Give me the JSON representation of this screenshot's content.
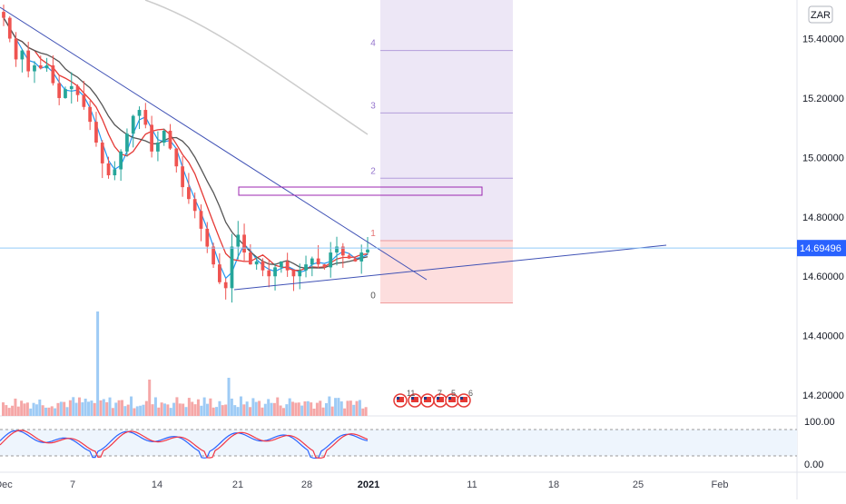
{
  "chart_data": {
    "type": "candlestick",
    "symbol_currency": "ZAR",
    "last_price": "14.69496",
    "y_ticks": [
      "15.40000",
      "15.20000",
      "15.00000",
      "14.80000",
      "14.60000",
      "14.40000",
      "14.20000"
    ],
    "y_tick_values": [
      15.4,
      15.2,
      15.0,
      14.8,
      14.6,
      14.4,
      14.2
    ],
    "x_ticks": [
      "Dec",
      "7",
      "14",
      "21",
      "28",
      "2021",
      "11",
      "18",
      "25",
      "Feb"
    ],
    "ylim": [
      14.13,
      15.53
    ],
    "price_path": [
      15.47,
      15.4,
      15.33,
      15.36,
      15.29,
      15.31,
      15.3,
      15.31,
      15.25,
      15.2,
      15.23,
      15.24,
      15.21,
      15.17,
      15.12,
      15.05,
      14.98,
      14.94,
      14.96,
      15.02,
      15.08,
      15.14,
      15.16,
      15.11,
      15.02,
      15.05,
      15.09,
      15.03,
      14.97,
      14.9,
      14.86,
      14.82,
      14.76,
      14.7,
      14.64,
      14.58,
      14.56,
      14.7,
      14.74,
      14.68,
      14.64,
      14.65,
      14.62,
      14.6,
      14.63,
      14.65,
      14.62,
      14.6,
      14.62,
      14.64,
      14.66,
      14.64,
      14.63,
      14.68,
      14.7,
      14.67,
      14.66,
      14.65,
      14.68,
      14.69
    ],
    "trend_lines": {
      "upper_resistance": [
        [
          15.5,
          0
        ],
        [
          14.58,
          1
        ]
      ],
      "lower_support": [
        [
          14.55,
          0
        ],
        [
          14.7,
          1
        ]
      ]
    },
    "rectangle_zone": [
      14.86,
      14.88
    ],
    "fib_levels": {
      "labels": [
        "4",
        "3",
        "2",
        "1",
        "0"
      ],
      "values": [
        15.36,
        15.15,
        14.93,
        14.72,
        14.51
      ]
    },
    "volume_note": "volume histogram",
    "event_markers": [
      "11",
      "7",
      "5",
      "6"
    ],
    "stochastic": {
      "upper_band": "100.00",
      "lower_band": "0.00",
      "k_color": "#f23645",
      "d_color": "#2962ff"
    },
    "colors": {
      "up": "#26a69a",
      "down": "#ef5350",
      "ma_fast": "#2196f3",
      "ma_mid": "#e53935",
      "ma_slow": "#555555",
      "ma_long": "#cccccc",
      "trend": "#3f51b5",
      "price_line": "#2962ff",
      "fib_purple": "#ede7f6",
      "fib_red": "#fddede",
      "rect_border": "#9c27b0"
    }
  }
}
